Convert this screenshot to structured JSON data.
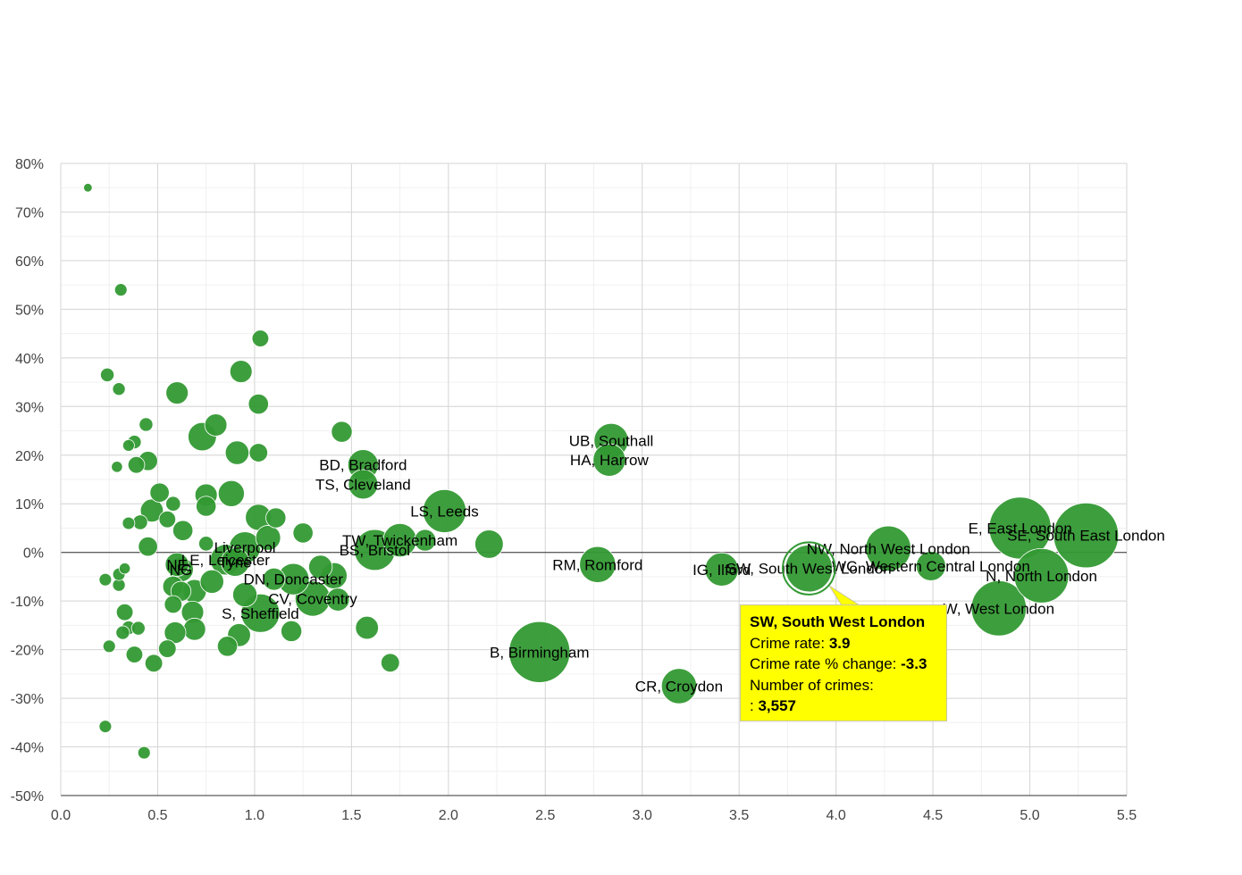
{
  "chart_data": {
    "type": "scatter",
    "title": "",
    "xlabel": "",
    "ylabel": "",
    "xlim": [
      0,
      5.5
    ],
    "ylim": [
      -50,
      80
    ],
    "x_ticks": [
      "0.0",
      "0.5",
      "1.0",
      "1.5",
      "2.0",
      "2.5",
      "3.0",
      "3.5",
      "4.0",
      "4.5",
      "5.0",
      "5.5"
    ],
    "x_tick_values": [
      0,
      0.5,
      1,
      1.5,
      2,
      2.5,
      3,
      3.5,
      4,
      4.5,
      5,
      5.5
    ],
    "y_ticks": [
      "80%",
      "70%",
      "60%",
      "50%",
      "40%",
      "30%",
      "20%",
      "10%",
      "0%",
      "-10%",
      "-20%",
      "-30%",
      "-40%",
      "-50%"
    ],
    "y_tick_values": [
      80,
      70,
      60,
      50,
      40,
      30,
      20,
      10,
      0,
      -10,
      -20,
      -30,
      -40,
      -50
    ],
    "grid": true,
    "bubble_color": "#339933",
    "size_field": "number of crimes",
    "labeled_points": [
      {
        "label": "UB, Southall",
        "x": 2.84,
        "y": 23,
        "size": 1900
      },
      {
        "label": "HA, Harrow",
        "x": 2.83,
        "y": 19,
        "size": 1700
      },
      {
        "label": "BD, Bradford",
        "x": 1.56,
        "y": 18,
        "size": 1500
      },
      {
        "label": "TS, Cleveland",
        "x": 1.56,
        "y": 14,
        "size": 1400
      },
      {
        "label": "LS, Leeds",
        "x": 1.98,
        "y": 8.5,
        "size": 3000
      },
      {
        "label": "TW, Twickenham",
        "x": 1.75,
        "y": 2.5,
        "size": 1800
      },
      {
        "label": "BS, Bristol",
        "x": 1.62,
        "y": 0.5,
        "size": 2700
      },
      {
        "label": "Liverpool",
        "x": 0.95,
        "y": 1,
        "size": 1600
      },
      {
        "label": "LE, Leicester",
        "x": 0.85,
        "y": -1.5,
        "size": 1500
      },
      {
        "label": "Tyne",
        "x": 0.9,
        "y": -2,
        "size": 1300
      },
      {
        "label": "NE",
        "x": 0.6,
        "y": -2.5,
        "size": 900
      },
      {
        "label": "NG",
        "x": 0.62,
        "y": -3.5,
        "size": 1000
      },
      {
        "label": "DN, Doncaster",
        "x": 1.2,
        "y": -5.5,
        "size": 1600
      },
      {
        "label": "CV, Coventry",
        "x": 1.3,
        "y": -9.5,
        "size": 2000
      },
      {
        "label": "S, Sheffield",
        "x": 1.03,
        "y": -12.5,
        "size": 2400
      },
      {
        "label": "B, Birmingham",
        "x": 2.47,
        "y": -20.5,
        "size": 6000
      },
      {
        "label": "RM, Romford",
        "x": 2.77,
        "y": -2.5,
        "size": 2100
      },
      {
        "label": "CR, Croydon",
        "x": 3.19,
        "y": -27.5,
        "size": 2000
      },
      {
        "label": "IG, Ilford",
        "x": 3.41,
        "y": -3.5,
        "size": 1800
      },
      {
        "label": "SW, South West London",
        "x": 3.86,
        "y": -3.3,
        "size": 3557
      },
      {
        "label": "NW, North West London",
        "x": 4.27,
        "y": 0.8,
        "size": 3300
      },
      {
        "label": "WC, Western Central London",
        "x": 4.49,
        "y": -2.8,
        "size": 1400
      },
      {
        "label": "E, East London",
        "x": 4.95,
        "y": 5,
        "size": 6200
      },
      {
        "label": "SE, South East London",
        "x": 5.29,
        "y": 3.5,
        "size": 6800
      },
      {
        "label": "N, North London",
        "x": 5.06,
        "y": -4.8,
        "size": 4800
      },
      {
        "label": "W, West London",
        "x": 4.84,
        "y": -11.5,
        "size": 4900
      }
    ],
    "unlabeled_points": [
      {
        "x": 0.14,
        "y": 75,
        "size": 120
      },
      {
        "x": 0.31,
        "y": 54,
        "size": 250
      },
      {
        "x": 1.03,
        "y": 44,
        "size": 450
      },
      {
        "x": 0.24,
        "y": 36.5,
        "size": 300
      },
      {
        "x": 0.93,
        "y": 37.2,
        "size": 800
      },
      {
        "x": 0.3,
        "y": 33.6,
        "size": 260
      },
      {
        "x": 0.6,
        "y": 32.8,
        "size": 800
      },
      {
        "x": 1.02,
        "y": 30.5,
        "size": 650
      },
      {
        "x": 0.44,
        "y": 26.3,
        "size": 300
      },
      {
        "x": 0.8,
        "y": 26.2,
        "size": 800
      },
      {
        "x": 1.45,
        "y": 24.8,
        "size": 700
      },
      {
        "x": 0.73,
        "y": 23.8,
        "size": 1300
      },
      {
        "x": 0.38,
        "y": 22.7,
        "size": 300
      },
      {
        "x": 0.35,
        "y": 22,
        "size": 220
      },
      {
        "x": 0.91,
        "y": 20.5,
        "size": 900
      },
      {
        "x": 1.02,
        "y": 20.5,
        "size": 550
      },
      {
        "x": 0.45,
        "y": 18.8,
        "size": 600
      },
      {
        "x": 0.39,
        "y": 18,
        "size": 450
      },
      {
        "x": 0.29,
        "y": 17.6,
        "size": 200
      },
      {
        "x": 0.51,
        "y": 12.3,
        "size": 600
      },
      {
        "x": 0.75,
        "y": 11.8,
        "size": 800
      },
      {
        "x": 0.88,
        "y": 12.1,
        "size": 1100
      },
      {
        "x": 0.58,
        "y": 10,
        "size": 350
      },
      {
        "x": 0.75,
        "y": 9.5,
        "size": 650
      },
      {
        "x": 0.47,
        "y": 8.6,
        "size": 850
      },
      {
        "x": 1.02,
        "y": 7.2,
        "size": 1100
      },
      {
        "x": 1.11,
        "y": 7.1,
        "size": 650
      },
      {
        "x": 0.55,
        "y": 6.8,
        "size": 450
      },
      {
        "x": 0.41,
        "y": 6.2,
        "size": 350
      },
      {
        "x": 0.35,
        "y": 6,
        "size": 250
      },
      {
        "x": 0.63,
        "y": 4.5,
        "size": 650
      },
      {
        "x": 1.25,
        "y": 4,
        "size": 650
      },
      {
        "x": 1.07,
        "y": 3,
        "size": 1000
      },
      {
        "x": 2.21,
        "y": 1.7,
        "size": 1300
      },
      {
        "x": 1.88,
        "y": 2.5,
        "size": 750
      },
      {
        "x": 0.45,
        "y": 1.2,
        "size": 600
      },
      {
        "x": 0.75,
        "y": 1.8,
        "size": 350
      },
      {
        "x": 0.33,
        "y": -3.3,
        "size": 200
      },
      {
        "x": 0.3,
        "y": -4.5,
        "size": 250
      },
      {
        "x": 0.23,
        "y": -5.6,
        "size": 250
      },
      {
        "x": 0.3,
        "y": -6.7,
        "size": 260
      },
      {
        "x": 0.58,
        "y": -7,
        "size": 700
      },
      {
        "x": 0.62,
        "y": -8,
        "size": 650
      },
      {
        "x": 0.69,
        "y": -8,
        "size": 900
      },
      {
        "x": 0.78,
        "y": -6,
        "size": 900
      },
      {
        "x": 1.1,
        "y": -5.5,
        "size": 800
      },
      {
        "x": 1.34,
        "y": -3,
        "size": 900
      },
      {
        "x": 1.41,
        "y": -4.8,
        "size": 1100
      },
      {
        "x": 0.95,
        "y": -8.7,
        "size": 950
      },
      {
        "x": 1.43,
        "y": -9.7,
        "size": 850
      },
      {
        "x": 0.58,
        "y": -10.7,
        "size": 500
      },
      {
        "x": 0.33,
        "y": -12.3,
        "size": 450
      },
      {
        "x": 0.68,
        "y": -12.3,
        "size": 800
      },
      {
        "x": 0.35,
        "y": -15.5,
        "size": 300
      },
      {
        "x": 0.4,
        "y": -15.6,
        "size": 300
      },
      {
        "x": 0.32,
        "y": -16.5,
        "size": 300
      },
      {
        "x": 0.59,
        "y": -16.5,
        "size": 750
      },
      {
        "x": 0.69,
        "y": -15.8,
        "size": 800
      },
      {
        "x": 0.92,
        "y": -17,
        "size": 850
      },
      {
        "x": 1.19,
        "y": -16.2,
        "size": 700
      },
      {
        "x": 1.58,
        "y": -15.5,
        "size": 850
      },
      {
        "x": 0.25,
        "y": -19.3,
        "size": 250
      },
      {
        "x": 0.55,
        "y": -19.8,
        "size": 500
      },
      {
        "x": 0.86,
        "y": -19.3,
        "size": 650
      },
      {
        "x": 0.38,
        "y": -21,
        "size": 450
      },
      {
        "x": 0.48,
        "y": -22.8,
        "size": 500
      },
      {
        "x": 1.7,
        "y": -22.7,
        "size": 550
      },
      {
        "x": 0.23,
        "y": -35.8,
        "size": 250
      },
      {
        "x": 0.43,
        "y": -41.2,
        "size": 250
      }
    ],
    "tooltip": {
      "title": "SW, South West London",
      "crime_rate_label": "Crime rate:",
      "crime_rate_value": "3.9",
      "change_label": "Crime rate % change:",
      "change_value": "-3.3",
      "crimes_label": "Number of crimes:",
      "crimes_prefix": ":",
      "crimes_value": "3,557"
    }
  }
}
